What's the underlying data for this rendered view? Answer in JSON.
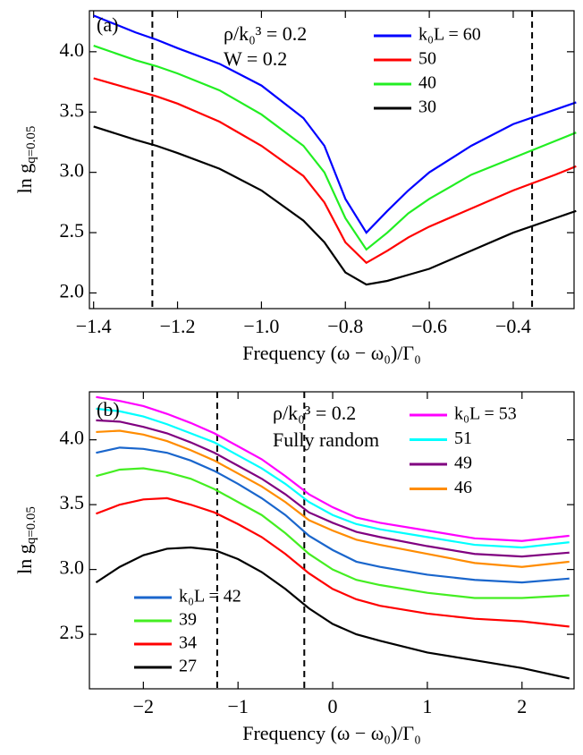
{
  "chart_data": [
    {
      "type": "line",
      "panel_label": "(a)",
      "annotations": [
        "ρ/k₀³ = 0.2",
        "W = 0.2"
      ],
      "x_label": "Frequency (ω − ω₀)/Γ₀",
      "y_label": "ln g",
      "y_label_sub": "q=0.05",
      "xlim": [
        -1.41,
        -0.255
      ],
      "ylim": [
        1.87,
        4.34
      ],
      "xticks": [
        {
          "value": -1.4,
          "label": "−1.4"
        },
        {
          "value": -1.2,
          "label": "−1.2"
        },
        {
          "value": -1.0,
          "label": "−1.0"
        },
        {
          "value": -0.8,
          "label": "−0.8"
        },
        {
          "value": -0.6,
          "label": "−0.6"
        },
        {
          "value": -0.4,
          "label": "−0.4"
        }
      ],
      "yticks": [
        {
          "value": 2,
          "label": "2.0"
        },
        2.5,
        {
          "value": 3,
          "label": "3.0"
        },
        3.5,
        {
          "value": 4,
          "label": "4.0"
        }
      ],
      "reference_lines": [
        -1.26,
        -0.355
      ],
      "x": [
        -1.4,
        -1.3,
        -1.25,
        -1.2,
        -1.1,
        -1.0,
        -0.9,
        -0.85,
        -0.8,
        -0.75,
        -0.7,
        -0.65,
        -0.6,
        -0.5,
        -0.4,
        -0.3,
        -0.25
      ],
      "series": [
        {
          "name": "k₀L = 60",
          "color": "#0000ff",
          "legend": "upper right",
          "values": [
            4.3,
            4.16,
            4.1,
            4.03,
            3.9,
            3.72,
            3.45,
            3.22,
            2.78,
            2.5,
            2.68,
            2.85,
            3.0,
            3.22,
            3.4,
            3.52,
            3.58
          ]
        },
        {
          "name": "50",
          "color": "#ff0000",
          "legend": "upper right",
          "values": [
            3.78,
            3.68,
            3.63,
            3.57,
            3.42,
            3.22,
            2.97,
            2.75,
            2.42,
            2.25,
            2.35,
            2.46,
            2.55,
            2.7,
            2.85,
            2.98,
            3.05
          ]
        },
        {
          "name": "40",
          "color": "#22ee22",
          "legend": "upper right",
          "values": [
            4.05,
            3.93,
            3.88,
            3.82,
            3.68,
            3.48,
            3.22,
            3.0,
            2.62,
            2.36,
            2.5,
            2.66,
            2.78,
            2.98,
            3.12,
            3.26,
            3.33
          ]
        },
        {
          "name": "30",
          "color": "#000000",
          "legend": "upper right",
          "values": [
            3.38,
            3.27,
            3.22,
            3.16,
            3.03,
            2.85,
            2.6,
            2.42,
            2.17,
            2.07,
            2.1,
            2.15,
            2.2,
            2.35,
            2.5,
            2.62,
            2.68
          ]
        }
      ]
    },
    {
      "type": "line",
      "panel_label": "(b)",
      "annotations": [
        "ρ/k₀³ = 0.2",
        "Fully random"
      ],
      "x_label": "Frequency (ω − ω₀)/Γ₀",
      "y_label": "ln g",
      "y_label_sub": "q=0.05",
      "xlim": [
        -2.57,
        2.55
      ],
      "ylim": [
        2.08,
        4.37
      ],
      "xticks": [
        {
          "value": -2,
          "label": "−2"
        },
        {
          "value": -1,
          "label": "−1"
        },
        0,
        1,
        2
      ],
      "yticks": [
        2.5,
        {
          "value": 3,
          "label": "3.0"
        },
        3.5,
        {
          "value": 4,
          "label": "4.0"
        }
      ],
      "reference_lines": [
        -1.22,
        -0.3
      ],
      "x": [
        -2.5,
        -2.25,
        -2,
        -1.75,
        -1.5,
        -1.25,
        -1,
        -0.75,
        -0.5,
        -0.25,
        0,
        0.25,
        0.5,
        1,
        1.5,
        2,
        2.5
      ],
      "series": [
        {
          "name": "k₀L = 53",
          "color": "#ff00ff",
          "legend": "upper right",
          "values": [
            4.33,
            4.3,
            4.26,
            4.2,
            4.13,
            4.05,
            3.95,
            3.85,
            3.72,
            3.58,
            3.48,
            3.4,
            3.36,
            3.3,
            3.24,
            3.22,
            3.26
          ]
        },
        {
          "name": "51",
          "color": "#00ffff",
          "legend": "upper right",
          "values": [
            4.24,
            4.22,
            4.18,
            4.12,
            4.05,
            3.98,
            3.88,
            3.78,
            3.66,
            3.52,
            3.42,
            3.35,
            3.31,
            3.25,
            3.19,
            3.17,
            3.21
          ]
        },
        {
          "name": "49",
          "color": "#800080",
          "legend": "upper right",
          "values": [
            4.15,
            4.14,
            4.1,
            4.05,
            3.98,
            3.9,
            3.8,
            3.7,
            3.58,
            3.44,
            3.36,
            3.29,
            3.25,
            3.18,
            3.12,
            3.1,
            3.13
          ]
        },
        {
          "name": "46",
          "color": "#ff8c00",
          "legend": "upper right",
          "values": [
            4.06,
            4.07,
            4.04,
            3.99,
            3.92,
            3.84,
            3.74,
            3.64,
            3.52,
            3.38,
            3.3,
            3.23,
            3.19,
            3.12,
            3.05,
            3.02,
            3.06
          ]
        },
        {
          "name": "k₀L = 42",
          "color": "#1a66cc",
          "legend": "lower left",
          "values": [
            3.9,
            3.94,
            3.93,
            3.9,
            3.84,
            3.76,
            3.66,
            3.55,
            3.42,
            3.26,
            3.15,
            3.06,
            3.02,
            2.96,
            2.92,
            2.9,
            2.93
          ]
        },
        {
          "name": "39",
          "color": "#44ee22",
          "legend": "lower left",
          "values": [
            3.72,
            3.77,
            3.78,
            3.75,
            3.7,
            3.62,
            3.52,
            3.42,
            3.28,
            3.12,
            3.0,
            2.92,
            2.88,
            2.82,
            2.78,
            2.78,
            2.8
          ]
        },
        {
          "name": "34",
          "color": "#ff0000",
          "legend": "lower left",
          "values": [
            3.43,
            3.5,
            3.54,
            3.55,
            3.5,
            3.44,
            3.35,
            3.25,
            3.12,
            2.97,
            2.85,
            2.77,
            2.72,
            2.66,
            2.62,
            2.6,
            2.56
          ]
        },
        {
          "name": "27",
          "color": "#000000",
          "legend": "lower left",
          "values": [
            2.9,
            3.02,
            3.11,
            3.16,
            3.17,
            3.15,
            3.08,
            2.98,
            2.85,
            2.7,
            2.58,
            2.5,
            2.45,
            2.36,
            2.3,
            2.24,
            2.16
          ]
        }
      ]
    }
  ]
}
